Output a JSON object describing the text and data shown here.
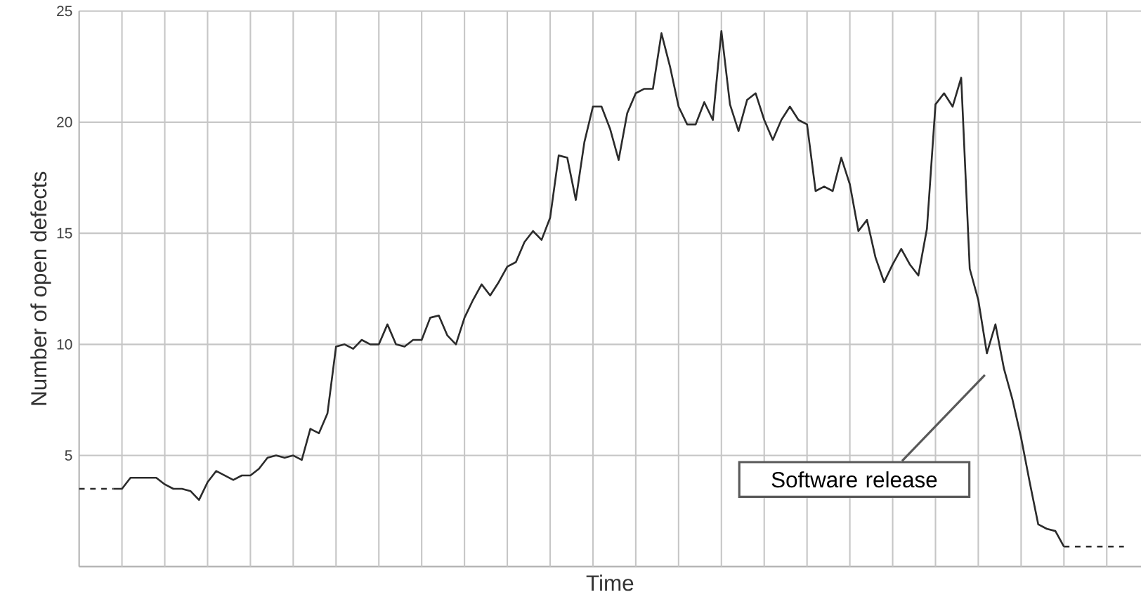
{
  "chart_data": {
    "type": "line",
    "xlabel": "Time",
    "ylabel": "Number of open defects",
    "categories": [
      null,
      null,
      null,
      null,
      null,
      null,
      null,
      null,
      null,
      null,
      null,
      null,
      null,
      null,
      null,
      null,
      null,
      null,
      null,
      null,
      null,
      null,
      null,
      null,
      null,
      null,
      null,
      null,
      null,
      null,
      null,
      null,
      null,
      null,
      null,
      null,
      null,
      null,
      null,
      null,
      null,
      null,
      null,
      null,
      null,
      null,
      null,
      null,
      null,
      null,
      null,
      null,
      null,
      null,
      null,
      null,
      null,
      null,
      null,
      null,
      null,
      null,
      null,
      null,
      null,
      null,
      null,
      null,
      null,
      null,
      null,
      null,
      null,
      null,
      null,
      null,
      null,
      null,
      null,
      null,
      null,
      null,
      null,
      null,
      null,
      null,
      null,
      null,
      null,
      null,
      null,
      null,
      null,
      null,
      null,
      null,
      null,
      null,
      null,
      null,
      null,
      null,
      null,
      null,
      null,
      null,
      null,
      null,
      null,
      null,
      null,
      null,
      null,
      null,
      null,
      null,
      null,
      null,
      null,
      null,
      null,
      null,
      null
    ],
    "ylim": [
      0,
      25
    ],
    "yticks": [
      {
        "value": 0,
        "label": null
      },
      5,
      10,
      15,
      20,
      25
    ],
    "grid": true,
    "tick_labels": "y",
    "series": [
      {
        "color": "#2b2b2b",
        "line_style": "dashed",
        "values": [
          3.5,
          3.5,
          3.5,
          3.5,
          3.5,
          null,
          null,
          null,
          null,
          null,
          null,
          null,
          null,
          null,
          null,
          null,
          null,
          null,
          null,
          null,
          null,
          null,
          null,
          null,
          null,
          null,
          null,
          null,
          null,
          null,
          null,
          null,
          null,
          null,
          null,
          null,
          null,
          null,
          null,
          null,
          null,
          null,
          null,
          null,
          null,
          null,
          null,
          null,
          null,
          null,
          null,
          null,
          null,
          null,
          null,
          null,
          null,
          null,
          null,
          null,
          null,
          null,
          null,
          null,
          null,
          null,
          null,
          null,
          null,
          null,
          null,
          null,
          null,
          null,
          null,
          null,
          null,
          null,
          null,
          null,
          null,
          null,
          null,
          null,
          null,
          null,
          null,
          null,
          null,
          null,
          null,
          null,
          null,
          null,
          null,
          null,
          null,
          null,
          null,
          null,
          null,
          null,
          null,
          null,
          null,
          null,
          null,
          null,
          null,
          null,
          null,
          null,
          null,
          null,
          null,
          null,
          null,
          null,
          null,
          null,
          null,
          null,
          null
        ]
      },
      {
        "color": "#2b2b2b",
        "line_style": "solid",
        "values": [
          null,
          null,
          null,
          null,
          3.5,
          3.5,
          4.0,
          4.0,
          4.0,
          4.0,
          3.7,
          3.5,
          3.5,
          3.4,
          3.0,
          3.8,
          4.3,
          4.1,
          3.9,
          4.1,
          4.1,
          4.4,
          4.9,
          5.0,
          4.9,
          5.0,
          4.8,
          6.2,
          6.0,
          6.9,
          9.9,
          10.0,
          9.8,
          10.2,
          10.0,
          10.0,
          10.9,
          10.0,
          9.9,
          10.2,
          10.2,
          11.2,
          11.3,
          10.4,
          10.0,
          11.2,
          12.0,
          12.7,
          12.2,
          12.8,
          13.5,
          13.7,
          14.6,
          15.1,
          14.7,
          15.7,
          18.5,
          18.4,
          16.5,
          19.1,
          20.7,
          20.7,
          19.7,
          18.3,
          20.4,
          21.3,
          21.5,
          21.5,
          24.0,
          22.5,
          20.7,
          19.9,
          19.9,
          20.9,
          20.1,
          24.1,
          20.8,
          19.6,
          21.0,
          21.3,
          20.1,
          19.2,
          20.1,
          20.7,
          20.1,
          19.9,
          16.9,
          17.1,
          16.9,
          18.4,
          17.2,
          15.1,
          15.6,
          13.9,
          12.8,
          13.6,
          14.3,
          13.6,
          13.1,
          15.2,
          20.8,
          21.3,
          20.7,
          22.0,
          13.4,
          12.0,
          9.6,
          10.9,
          8.9,
          7.5,
          5.8,
          3.8,
          1.9,
          1.7,
          1.6,
          0.9,
          null,
          null,
          null,
          null,
          null,
          null,
          null
        ]
      },
      {
        "color": "#2b2b2b",
        "line_style": "dashed",
        "values": [
          null,
          null,
          null,
          null,
          null,
          null,
          null,
          null,
          null,
          null,
          null,
          null,
          null,
          null,
          null,
          null,
          null,
          null,
          null,
          null,
          null,
          null,
          null,
          null,
          null,
          null,
          null,
          null,
          null,
          null,
          null,
          null,
          null,
          null,
          null,
          null,
          null,
          null,
          null,
          null,
          null,
          null,
          null,
          null,
          null,
          null,
          null,
          null,
          null,
          null,
          null,
          null,
          null,
          null,
          null,
          null,
          null,
          null,
          null,
          null,
          null,
          null,
          null,
          null,
          null,
          null,
          null,
          null,
          null,
          null,
          null,
          null,
          null,
          null,
          null,
          null,
          null,
          null,
          null,
          null,
          null,
          null,
          null,
          null,
          null,
          null,
          null,
          null,
          null,
          null,
          null,
          null,
          null,
          null,
          null,
          null,
          null,
          null,
          null,
          null,
          null,
          null,
          null,
          null,
          null,
          null,
          null,
          null,
          null,
          null,
          null,
          null,
          null,
          null,
          null,
          0.9,
          0.9,
          0.9,
          0.9,
          0.9,
          0.9,
          0.9,
          0.9
        ]
      }
    ],
    "annotations": [
      "Software release"
    ]
  }
}
